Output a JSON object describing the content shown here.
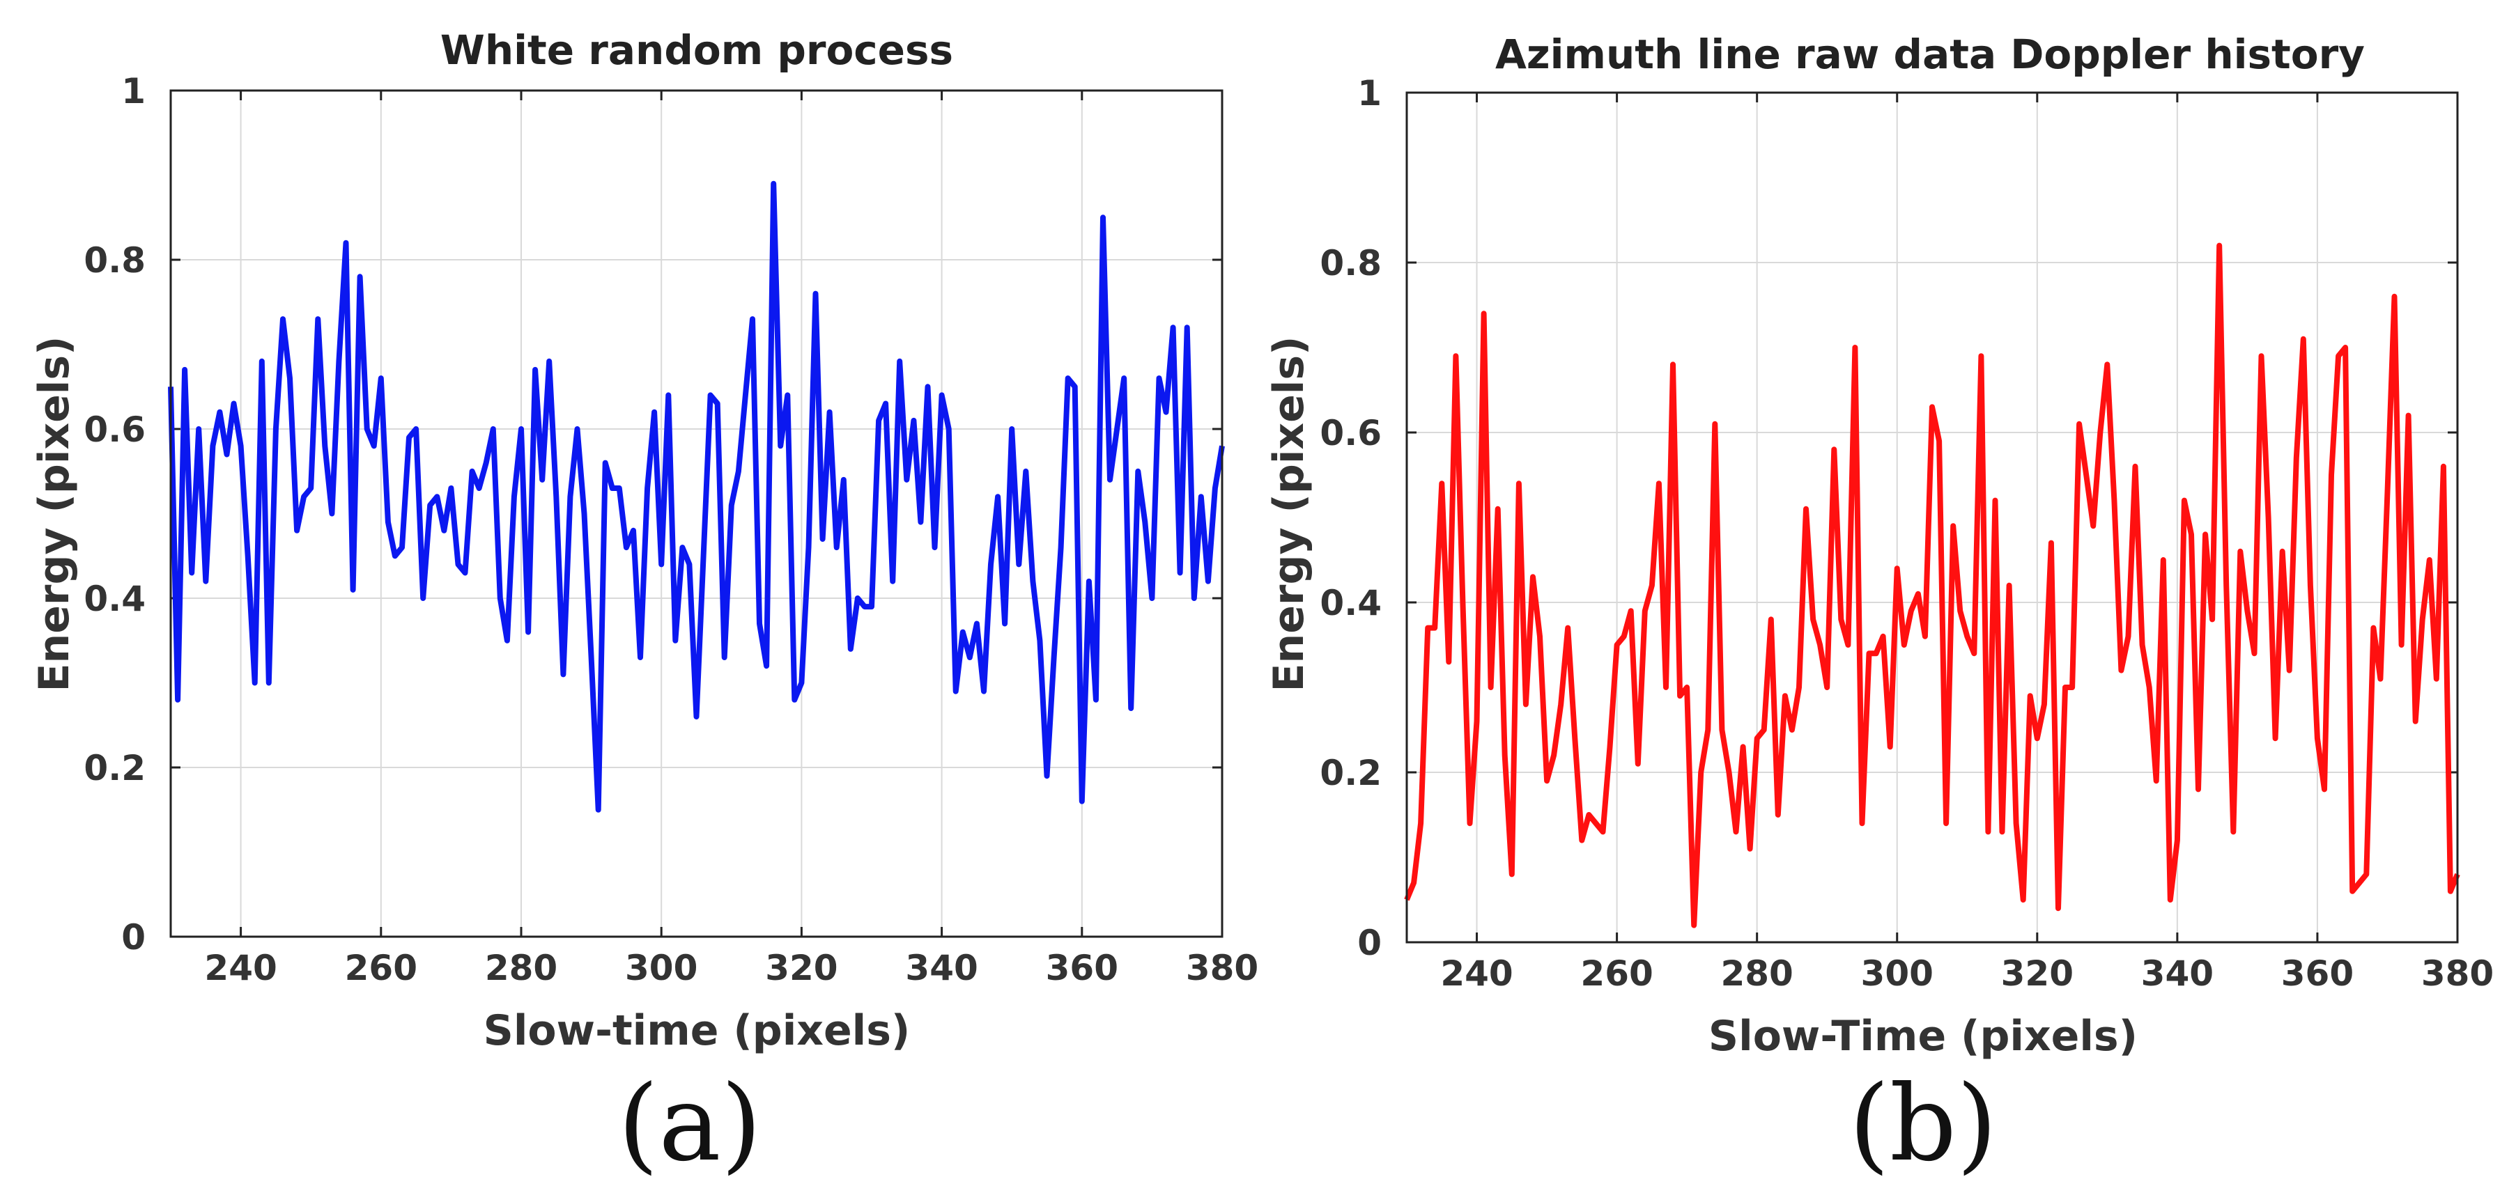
{
  "colors": {
    "series_a": "#0b18f0",
    "series_b": "#ff1010"
  },
  "chart_data": [
    {
      "type": "line",
      "title": "White random process",
      "xlabel": "Slow-time (pixels)",
      "ylabel": "Energy (pixels)",
      "panel_label": "(a)",
      "xlim": [
        230,
        380
      ],
      "ylim": [
        0,
        1
      ],
      "xticks": [
        240,
        260,
        280,
        300,
        320,
        340,
        360,
        380
      ],
      "yticks": [
        0,
        0.2,
        0.4,
        0.6,
        0.8,
        1
      ],
      "ytick_labels": [
        "0",
        "0.2",
        "0.4",
        "0.6",
        "0.8",
        "1"
      ],
      "grid": true,
      "series": [
        {
          "name": "White random process",
          "color": "#0b18f0",
          "x": [
            230,
            231,
            232,
            233,
            234,
            235,
            236,
            237,
            238,
            239,
            240,
            241,
            242,
            243,
            244,
            245,
            246,
            247,
            248,
            249,
            250,
            251,
            252,
            253,
            254,
            255,
            256,
            257,
            258,
            259,
            260,
            261,
            262,
            263,
            264,
            265,
            266,
            267,
            268,
            269,
            270,
            271,
            272,
            273,
            274,
            275,
            276,
            277,
            278,
            279,
            280,
            281,
            282,
            283,
            284,
            285,
            286,
            287,
            288,
            289,
            290,
            291,
            292,
            293,
            294,
            295,
            296,
            297,
            298,
            299,
            300,
            301,
            302,
            303,
            304,
            305,
            306,
            307,
            308,
            309,
            310,
            311,
            312,
            313,
            314,
            315,
            316,
            317,
            318,
            319,
            320,
            321,
            322,
            323,
            324,
            325,
            326,
            327,
            328,
            329,
            330,
            331,
            332,
            333,
            334,
            335,
            336,
            337,
            338,
            339,
            340,
            341,
            342,
            343,
            344,
            345,
            346,
            347,
            348,
            349,
            350,
            351,
            352,
            353,
            354,
            355,
            356,
            357,
            358,
            359,
            360,
            361,
            362,
            363,
            364,
            365,
            366,
            367,
            368,
            369,
            370,
            371,
            372,
            373,
            374,
            375,
            376,
            377,
            378,
            379,
            380
          ],
          "y": [
            0.65,
            0.28,
            0.67,
            0.43,
            0.6,
            0.42,
            0.58,
            0.62,
            0.57,
            0.63,
            0.58,
            0.45,
            0.3,
            0.68,
            0.3,
            0.6,
            0.73,
            0.66,
            0.48,
            0.52,
            0.53,
            0.73,
            0.58,
            0.5,
            0.68,
            0.82,
            0.41,
            0.78,
            0.6,
            0.58,
            0.66,
            0.49,
            0.45,
            0.46,
            0.59,
            0.6,
            0.4,
            0.51,
            0.52,
            0.48,
            0.53,
            0.44,
            0.43,
            0.55,
            0.53,
            0.56,
            0.6,
            0.4,
            0.35,
            0.52,
            0.6,
            0.36,
            0.67,
            0.54,
            0.68,
            0.52,
            0.31,
            0.52,
            0.6,
            0.5,
            0.33,
            0.15,
            0.56,
            0.53,
            0.53,
            0.46,
            0.48,
            0.33,
            0.53,
            0.62,
            0.44,
            0.64,
            0.35,
            0.46,
            0.44,
            0.26,
            0.45,
            0.64,
            0.63,
            0.33,
            0.51,
            0.55,
            0.64,
            0.73,
            0.37,
            0.32,
            0.89,
            0.58,
            0.64,
            0.28,
            0.3,
            0.46,
            0.76,
            0.47,
            0.62,
            0.46,
            0.54,
            0.34,
            0.4,
            0.39,
            0.39,
            0.61,
            0.63,
            0.42,
            0.68,
            0.54,
            0.61,
            0.49,
            0.65,
            0.46,
            0.64,
            0.6,
            0.29,
            0.36,
            0.33,
            0.37,
            0.29,
            0.44,
            0.52,
            0.37,
            0.6,
            0.44,
            0.55,
            0.42,
            0.35,
            0.19,
            0.33,
            0.46,
            0.66,
            0.65,
            0.16,
            0.42,
            0.28,
            0.85,
            0.54,
            0.6,
            0.66,
            0.27,
            0.55,
            0.49,
            0.4,
            0.66,
            0.62,
            0.72,
            0.43,
            0.72,
            0.4,
            0.52,
            0.42,
            0.53,
            0.58
          ]
        }
      ]
    },
    {
      "type": "line",
      "title": "Azimuth line raw data Doppler history",
      "xlabel": "Slow-Time (pixels)",
      "ylabel": "Energy (pixels)",
      "panel_label": "(b)",
      "xlim": [
        230,
        380
      ],
      "ylim": [
        0,
        1
      ],
      "xticks": [
        240,
        260,
        280,
        300,
        320,
        340,
        360,
        380
      ],
      "yticks": [
        0,
        0.2,
        0.4,
        0.6,
        0.8,
        1
      ],
      "ytick_labels": [
        "0",
        "0.2",
        "0.4",
        "0.6",
        "0.8",
        "1"
      ],
      "grid": true,
      "series": [
        {
          "name": "Azimuth line raw data Doppler history",
          "color": "#ff1010",
          "x": [
            230,
            231,
            232,
            233,
            234,
            235,
            236,
            237,
            238,
            239,
            240,
            241,
            242,
            243,
            244,
            245,
            246,
            247,
            248,
            249,
            250,
            251,
            252,
            253,
            254,
            255,
            256,
            257,
            258,
            259,
            260,
            261,
            262,
            263,
            264,
            265,
            266,
            267,
            268,
            269,
            270,
            271,
            272,
            273,
            274,
            275,
            276,
            277,
            278,
            279,
            280,
            281,
            282,
            283,
            284,
            285,
            286,
            287,
            288,
            289,
            290,
            291,
            292,
            293,
            294,
            295,
            296,
            297,
            298,
            299,
            300,
            301,
            302,
            303,
            304,
            305,
            306,
            307,
            308,
            309,
            310,
            311,
            312,
            313,
            314,
            315,
            316,
            317,
            318,
            319,
            320,
            321,
            322,
            323,
            324,
            325,
            326,
            327,
            328,
            329,
            330,
            331,
            332,
            333,
            334,
            335,
            336,
            337,
            338,
            339,
            340,
            341,
            342,
            343,
            344,
            345,
            346,
            347,
            348,
            349,
            350,
            351,
            352,
            353,
            354,
            355,
            356,
            357,
            358,
            359,
            360,
            361,
            362,
            363,
            364,
            365,
            366,
            367,
            368,
            369,
            370,
            371,
            372,
            373,
            374,
            375,
            376,
            377,
            378,
            379,
            380
          ],
          "y": [
            0.05,
            0.07,
            0.14,
            0.37,
            0.37,
            0.54,
            0.33,
            0.69,
            0.4,
            0.14,
            0.26,
            0.74,
            0.3,
            0.51,
            0.22,
            0.08,
            0.54,
            0.28,
            0.43,
            0.36,
            0.19,
            0.22,
            0.28,
            0.37,
            0.24,
            0.12,
            0.15,
            0.14,
            0.13,
            0.23,
            0.35,
            0.36,
            0.39,
            0.21,
            0.39,
            0.42,
            0.54,
            0.3,
            0.68,
            0.29,
            0.3,
            0.02,
            0.2,
            0.25,
            0.61,
            0.25,
            0.2,
            0.13,
            0.23,
            0.11,
            0.24,
            0.25,
            0.38,
            0.15,
            0.29,
            0.25,
            0.3,
            0.51,
            0.38,
            0.35,
            0.3,
            0.58,
            0.38,
            0.35,
            0.7,
            0.14,
            0.34,
            0.34,
            0.36,
            0.23,
            0.44,
            0.35,
            0.39,
            0.41,
            0.36,
            0.63,
            0.59,
            0.14,
            0.49,
            0.39,
            0.36,
            0.34,
            0.69,
            0.13,
            0.52,
            0.13,
            0.42,
            0.14,
            0.05,
            0.29,
            0.24,
            0.28,
            0.47,
            0.04,
            0.3,
            0.3,
            0.61,
            0.55,
            0.49,
            0.6,
            0.68,
            0.52,
            0.32,
            0.36,
            0.56,
            0.35,
            0.3,
            0.19,
            0.45,
            0.05,
            0.12,
            0.52,
            0.48,
            0.18,
            0.48,
            0.38,
            0.82,
            0.42,
            0.13,
            0.46,
            0.39,
            0.34,
            0.69,
            0.5,
            0.24,
            0.46,
            0.32,
            0.57,
            0.71,
            0.42,
            0.24,
            0.18,
            0.55,
            0.69,
            0.7,
            0.06,
            0.07,
            0.08,
            0.37,
            0.31,
            0.53,
            0.76,
            0.35,
            0.62,
            0.26,
            0.38,
            0.45,
            0.31,
            0.56,
            0.06,
            0.08
          ]
        }
      ]
    }
  ]
}
